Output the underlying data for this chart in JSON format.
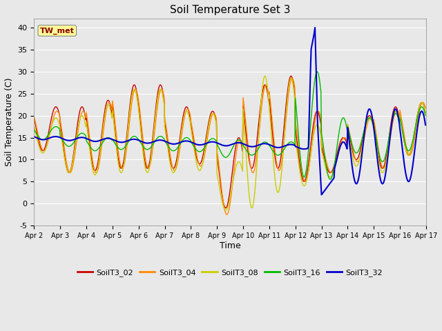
{
  "title": "Soil Temperature Set 3",
  "xlabel": "Time",
  "ylabel": "Soil Temperature (C)",
  "ylim": [
    -5,
    42
  ],
  "yticks": [
    -5,
    0,
    5,
    10,
    15,
    20,
    25,
    30,
    35,
    40
  ],
  "annotation": "TW_met",
  "annotation_color": "#8B0000",
  "annotation_bg": "#FFFF99",
  "bg_color": "#E8E8E8",
  "series": {
    "SoilT3_02": {
      "color": "#CC0000",
      "lw": 1.0
    },
    "SoilT3_04": {
      "color": "#FF8800",
      "lw": 1.0
    },
    "SoilT3_08": {
      "color": "#CCCC00",
      "lw": 1.0
    },
    "SoilT3_16": {
      "color": "#00BB00",
      "lw": 1.0
    },
    "SoilT3_32": {
      "color": "#0000CC",
      "lw": 1.5
    }
  },
  "xtick_labels": [
    "Apr 2",
    "Apr 3",
    "Apr 4",
    "Apr 5",
    "Apr 6",
    "Apr 7",
    "Apr 8",
    "Apr 9",
    "Apr 10",
    "Apr 11",
    "Apr 12",
    "Apr 13",
    "Apr 14",
    "Apr 15",
    "Apr 16",
    "Apr 17"
  ],
  "num_days": 15,
  "pts_per_day": 48
}
